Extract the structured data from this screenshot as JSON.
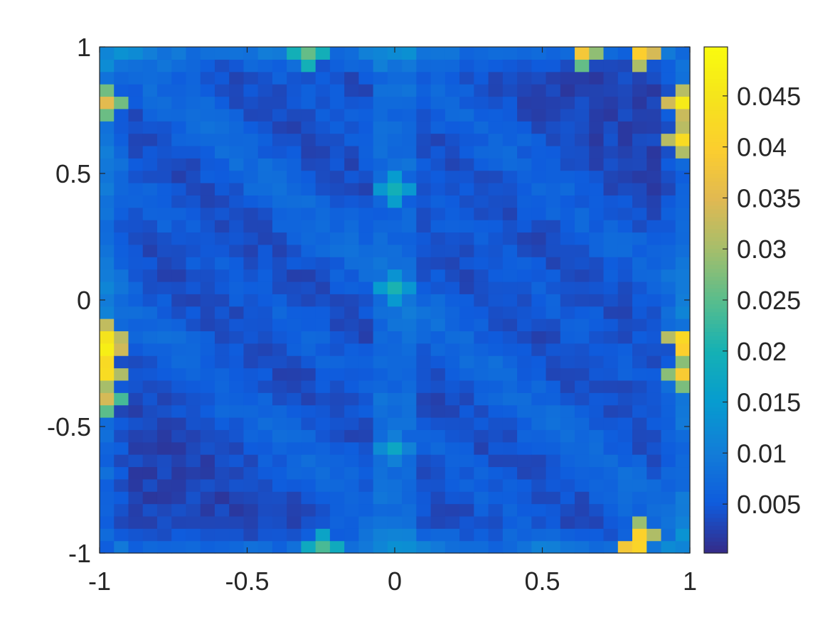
{
  "chart_data": {
    "type": "heatmap",
    "title": "",
    "xlabel": "",
    "ylabel": "",
    "xlim": [
      -1,
      1
    ],
    "ylim": [
      -1,
      1
    ],
    "grid": false,
    "x_ticks": [
      {
        "value": -1,
        "label": "-1"
      },
      {
        "value": -0.5,
        "label": "-0.5"
      },
      {
        "value": 0,
        "label": "0"
      },
      {
        "value": 0.5,
        "label": "0.5"
      },
      {
        "value": 1,
        "label": "1"
      }
    ],
    "y_ticks": [
      {
        "value": -1,
        "label": "-1"
      },
      {
        "value": -0.5,
        "label": "-0.5"
      },
      {
        "value": 0,
        "label": "0"
      },
      {
        "value": 0.5,
        "label": "0.5"
      },
      {
        "value": 1,
        "label": "1"
      }
    ],
    "grid_resolution": [
      41,
      41
    ],
    "colormap": "parula",
    "colorbar": {
      "placement": "right",
      "range": [
        0.0002,
        0.0498
      ],
      "ticks": [
        {
          "value": 0.005,
          "label": "0.005"
        },
        {
          "value": 0.01,
          "label": "0.01"
        },
        {
          "value": 0.015,
          "label": "0.015"
        },
        {
          "value": 0.02,
          "label": "0.02"
        },
        {
          "value": 0.025,
          "label": "0.025"
        },
        {
          "value": 0.03,
          "label": "0.03"
        },
        {
          "value": 0.035,
          "label": "0.035"
        },
        {
          "value": 0.04,
          "label": "0.04"
        },
        {
          "value": 0.045,
          "label": "0.045"
        }
      ]
    },
    "features": {
      "background_level": 0.004,
      "diagonal_bands": [
        {
          "offset": 0.05,
          "level": 0.0085
        },
        {
          "offset": -0.95,
          "level": 0.008
        },
        {
          "offset": 1.0,
          "level": 0.0075
        }
      ],
      "center_column_level": 0.012,
      "hot_spots": [
        {
          "x": -1.0,
          "y": -0.22,
          "value": 0.049
        },
        {
          "x": -1.0,
          "y": -0.15,
          "value": 0.044
        },
        {
          "x": -1.0,
          "y": -0.3,
          "value": 0.043
        },
        {
          "x": -1.0,
          "y": 0.8,
          "value": 0.036
        },
        {
          "x": -1.0,
          "y": -0.4,
          "value": 0.034
        },
        {
          "x": 1.0,
          "y": 0.65,
          "value": 0.043
        },
        {
          "x": 1.0,
          "y": 0.8,
          "value": 0.045
        },
        {
          "x": 1.0,
          "y": -0.3,
          "value": 0.04
        },
        {
          "x": 1.0,
          "y": -0.17,
          "value": 0.046
        },
        {
          "x": 0.66,
          "y": 1.0,
          "value": 0.038
        },
        {
          "x": 0.86,
          "y": 1.0,
          "value": 0.042
        },
        {
          "x": 0.86,
          "y": -0.95,
          "value": 0.04
        },
        {
          "x": 0.83,
          "y": -1.0,
          "value": 0.043
        },
        {
          "x": -0.3,
          "y": 1.0,
          "value": 0.026
        },
        {
          "x": -0.25,
          "y": -1.0,
          "value": 0.024
        },
        {
          "x": 0.0,
          "y": 0.45,
          "value": 0.02
        },
        {
          "x": 0.0,
          "y": 0.05,
          "value": 0.02
        },
        {
          "x": 0.0,
          "y": -0.6,
          "value": 0.016
        }
      ]
    }
  }
}
